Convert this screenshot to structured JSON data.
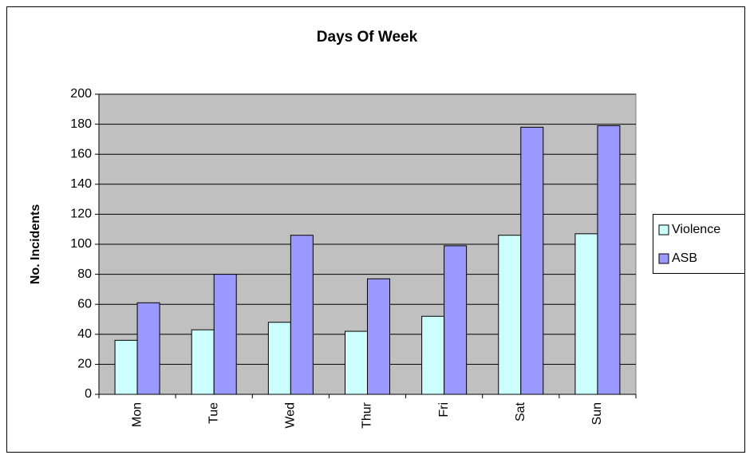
{
  "chart_data": {
    "type": "bar",
    "title": "Days Of Week",
    "y_label": "No. Incidents",
    "categories": [
      "Mon",
      "Tue",
      "Wed",
      "Thur",
      "Fri",
      "Sat",
      "Sun"
    ],
    "series": [
      {
        "name": "Violence",
        "color": "#ccffff",
        "values": [
          36,
          43,
          48,
          42,
          52,
          106,
          107
        ]
      },
      {
        "name": "ASB",
        "color": "#9999ff",
        "values": [
          61,
          80,
          106,
          77,
          99,
          178,
          179
        ]
      }
    ],
    "ylim": [
      0,
      200
    ],
    "yticks": [
      0,
      20,
      40,
      60,
      80,
      100,
      120,
      140,
      160,
      180,
      200
    ],
    "grid": true,
    "legend": "right"
  }
}
